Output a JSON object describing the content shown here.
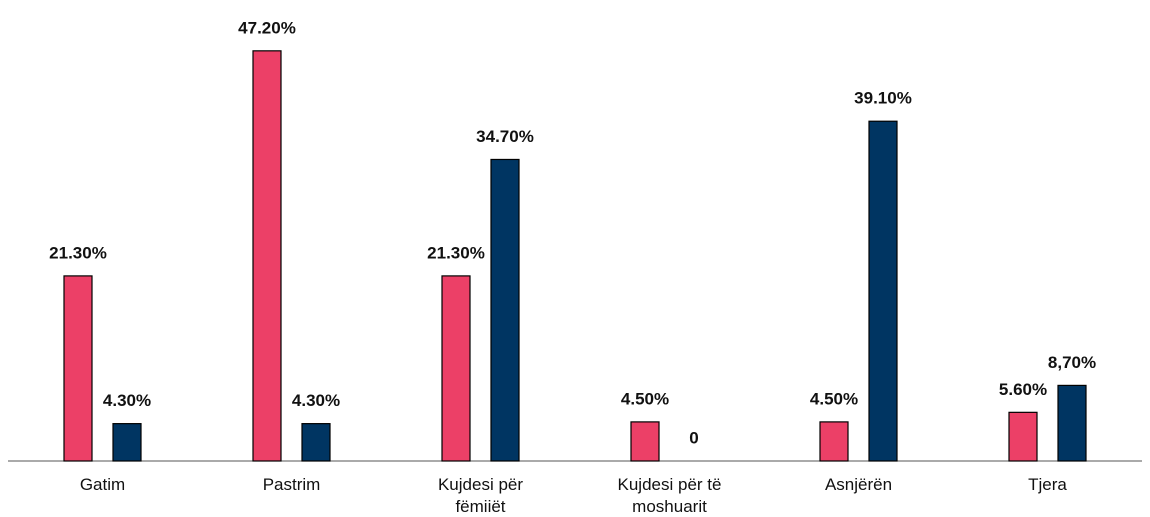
{
  "chart_data": {
    "type": "bar",
    "categories": [
      "Gatim",
      "Pastrim",
      "Kujdesi për fëmiiët",
      "Kujdesi për të moshuarit",
      "Asnjërën",
      "Tjera"
    ],
    "series": [
      {
        "color": "#ec4067",
        "values": [
          21.3,
          47.2,
          21.3,
          4.5,
          4.5,
          5.6
        ],
        "value_labels": [
          "21.30%",
          "47.20%",
          "21.30%",
          "4.50%",
          "4.50%",
          "5.60%"
        ]
      },
      {
        "color": "#003562",
        "values": [
          4.3,
          4.3,
          34.7,
          0,
          39.1,
          8.7
        ],
        "value_labels": [
          "4.30%",
          "4.30%",
          "34.70%",
          "0",
          "39.10%",
          "8,70%"
        ]
      }
    ],
    "ylim": [
      0,
      50
    ]
  }
}
